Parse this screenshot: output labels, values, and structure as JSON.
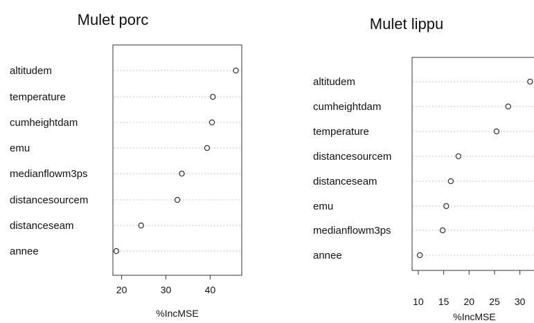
{
  "chart_data": [
    {
      "type": "scatter",
      "title": "Mulet porc",
      "xlabel": "%IncMSE",
      "xlim": [
        18.5,
        46.5
      ],
      "xticks": [
        20,
        30,
        40
      ],
      "categories": [
        "altitudem",
        "temperature",
        "cumheightdam",
        "emu",
        "medianflowm3ps",
        "distancesourcem",
        "distanceseam",
        "annee"
      ],
      "values": [
        45.8,
        40.6,
        40.4,
        39.3,
        33.6,
        32.6,
        24.4,
        18.8
      ],
      "grid": "dotted horizontal",
      "marker": "open circle"
    },
    {
      "type": "scatter",
      "title": "Mulet lippu",
      "xlabel": "%IncMSE",
      "xlim": [
        9.6,
        32.5
      ],
      "xticks": [
        10,
        15,
        20,
        25,
        30
      ],
      "categories": [
        "altitudem",
        "cumheightdam",
        "temperature",
        "distancesourcem",
        "distanceseam",
        "emu",
        "medianflowm3ps",
        "annee"
      ],
      "values": [
        32.0,
        27.7,
        25.4,
        17.9,
        16.4,
        15.5,
        14.8,
        10.3
      ],
      "grid": "dotted horizontal",
      "marker": "open circle"
    }
  ]
}
